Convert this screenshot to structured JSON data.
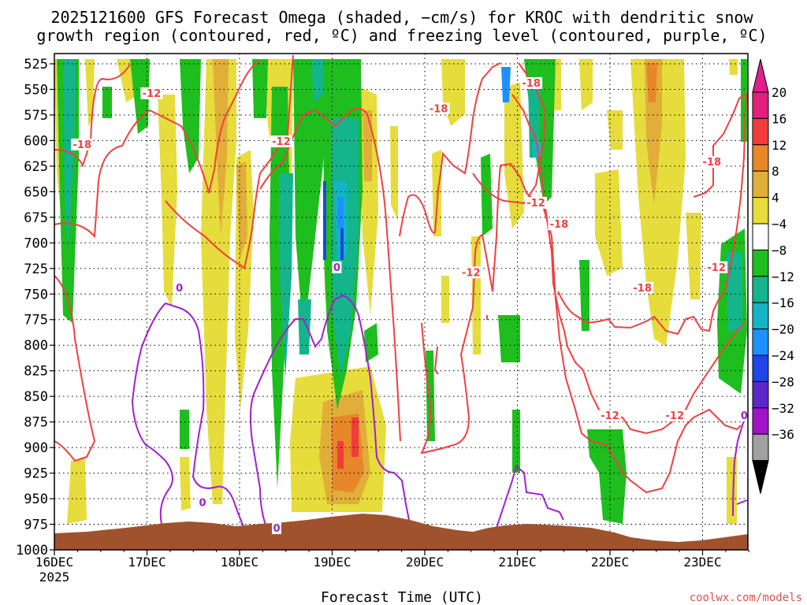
{
  "chart_data": {
    "type": "heatmap",
    "title_line1": "2025121600 GFS Forecast Omega (shaded, −cm/s) for KROC with dendritic snow",
    "title_line2": "growth region (contoured, red, ºC) and freezing level (contoured, purple, ºC)",
    "xlabel": "Forecast Time (UTC)",
    "credit": "coolwx.com/models",
    "year_label": "2025",
    "x_ticks": [
      "16DEC",
      "17DEC",
      "18DEC",
      "19DEC",
      "20DEC",
      "21DEC",
      "22DEC",
      "23DEC"
    ],
    "y_ticks": [
      "525",
      "550",
      "575",
      "600",
      "625",
      "650",
      "675",
      "700",
      "725",
      "750",
      "775",
      "800",
      "825",
      "850",
      "875",
      "900",
      "925",
      "950",
      "975",
      "1000"
    ],
    "ylim": [
      1000,
      515
    ],
    "xlim_days": [
      0,
      7.55
    ],
    "colorbar": {
      "labels": [
        "20",
        "16",
        "12",
        "8",
        "4",
        "−4",
        "−8",
        "−12",
        "−16",
        "−20",
        "−24",
        "−28",
        "−32",
        "−36"
      ],
      "colors": [
        "#e0207a",
        "#f03c3c",
        "#e8862a",
        "#e2ae3a",
        "#e6dc3c",
        "#ffffff",
        "#1ebe1e",
        "#14b48c",
        "#14b4c8",
        "#1e90ff",
        "#1e46e6",
        "#5a28c8",
        "#a014c8",
        "#a0a0a0"
      ],
      "top_color": "#e01e8c",
      "bottom_color": "#000000"
    },
    "series": [
      {
        "name": "dendritic -12 contour labels",
        "color": "#f04040",
        "labels": [
          {
            "text": "-12",
            "day": 1.05,
            "p": 555
          },
          {
            "text": "-12",
            "day": 2.45,
            "p": 602
          },
          {
            "text": "-12",
            "day": 4.5,
            "p": 730
          },
          {
            "text": "-12",
            "day": 5.2,
            "p": 662
          },
          {
            "text": "-12",
            "day": 6.0,
            "p": 870
          },
          {
            "text": "-12",
            "day": 6.7,
            "p": 870
          },
          {
            "text": "-12",
            "day": 7.15,
            "p": 725
          }
        ]
      },
      {
        "name": "dendritic -18 contour labels",
        "color": "#f04040",
        "labels": [
          {
            "text": "-18",
            "day": 0.3,
            "p": 605
          },
          {
            "text": "-18",
            "day": 4.15,
            "p": 570
          },
          {
            "text": "-18",
            "day": 5.15,
            "p": 545
          },
          {
            "text": "-18",
            "day": 5.45,
            "p": 683
          },
          {
            "text": "-18",
            "day": 6.35,
            "p": 745
          },
          {
            "text": "-18",
            "day": 7.1,
            "p": 622
          }
        ]
      },
      {
        "name": "freezing level 0 labels",
        "color": "#a020d0",
        "labels": [
          {
            "text": "0",
            "day": 1.35,
            "p": 745
          },
          {
            "text": "0",
            "day": 1.6,
            "p": 955
          },
          {
            "text": "0",
            "day": 2.4,
            "p": 980
          },
          {
            "text": "0",
            "day": 3.05,
            "p": 725
          },
          {
            "text": "0",
            "day": 7.45,
            "p": 870
          }
        ]
      }
    ]
  }
}
